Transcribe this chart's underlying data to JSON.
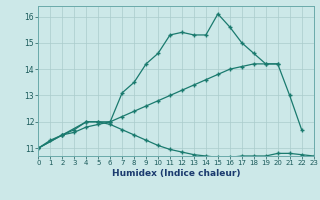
{
  "xlabel": "Humidex (Indice chaleur)",
  "bg_color": "#cce8e8",
  "line_color": "#1a7a6e",
  "grid_color": "#aacccc",
  "ylim": [
    10.7,
    16.4
  ],
  "xlim": [
    0,
    23
  ],
  "line1_x": [
    0,
    1,
    2,
    3,
    4,
    5,
    6,
    7,
    8,
    9,
    10,
    11,
    12,
    13,
    14,
    15,
    16,
    17,
    18,
    19,
    20,
    21,
    22
  ],
  "line1_y": [
    11.0,
    11.3,
    11.5,
    11.7,
    12.0,
    12.0,
    12.0,
    13.1,
    13.5,
    14.2,
    14.6,
    15.3,
    15.4,
    15.3,
    15.3,
    16.1,
    15.6,
    15.0,
    14.6,
    14.2,
    14.2,
    13.0,
    11.7
  ],
  "line2_x": [
    0,
    2,
    3,
    4,
    5,
    6,
    7,
    8,
    9,
    10,
    11,
    12,
    13,
    14,
    15,
    16,
    17,
    18,
    19,
    20
  ],
  "line2_y": [
    11.0,
    11.5,
    11.6,
    11.8,
    11.9,
    12.0,
    12.2,
    12.4,
    12.6,
    12.8,
    13.0,
    13.2,
    13.4,
    13.6,
    13.8,
    14.0,
    14.1,
    14.2,
    14.2,
    14.2
  ],
  "line3_x": [
    0,
    2,
    4,
    5,
    6,
    7,
    8,
    9,
    10,
    11,
    12,
    13,
    14,
    15,
    16,
    17,
    18,
    19,
    20,
    21,
    22,
    23
  ],
  "line3_y": [
    11.0,
    11.5,
    12.0,
    12.0,
    11.9,
    11.7,
    11.5,
    11.3,
    11.1,
    10.95,
    10.85,
    10.75,
    10.7,
    10.65,
    10.65,
    10.7,
    10.7,
    10.7,
    10.8,
    10.8,
    10.75,
    10.7
  ],
  "yticks": [
    11,
    12,
    13,
    14,
    15,
    16
  ],
  "xticks": [
    0,
    1,
    2,
    3,
    4,
    5,
    6,
    7,
    8,
    9,
    10,
    11,
    12,
    13,
    14,
    15,
    16,
    17,
    18,
    19,
    20,
    21,
    22,
    23
  ]
}
